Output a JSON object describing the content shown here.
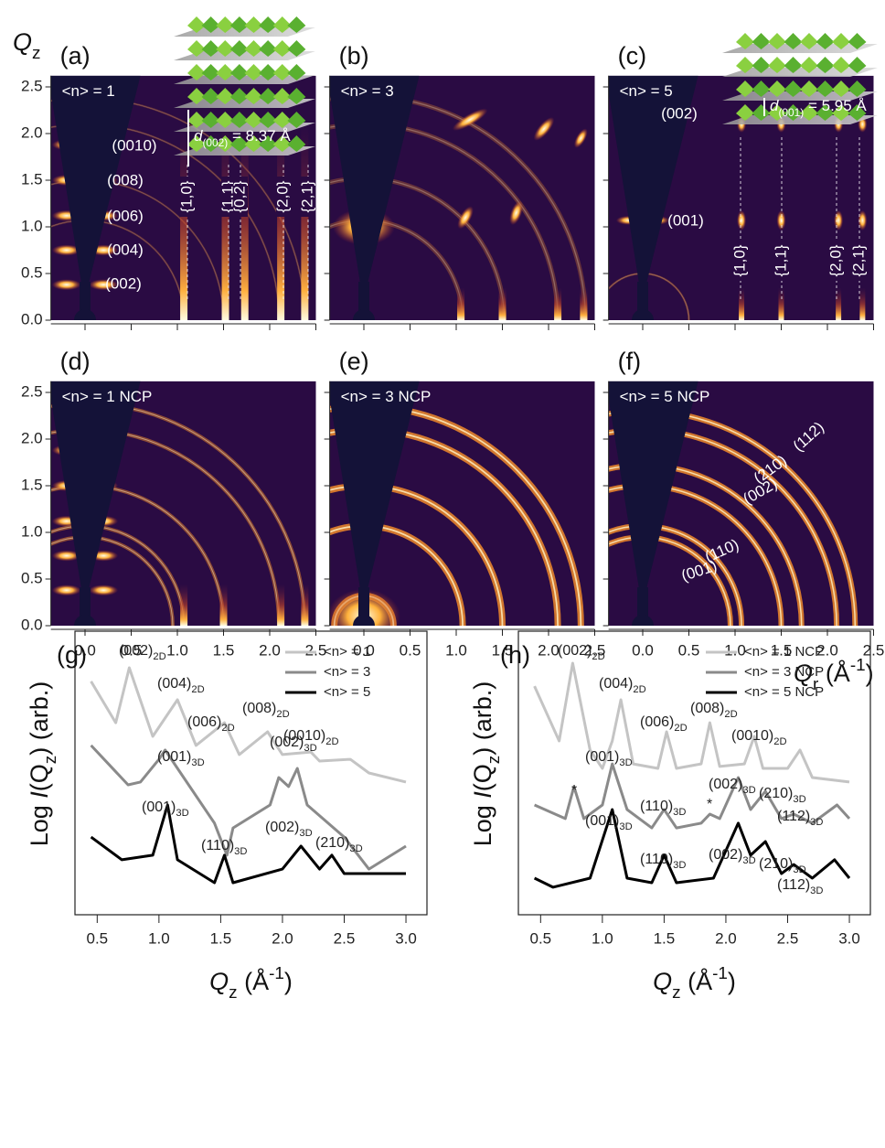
{
  "gi_panels": {
    "qz_label": {
      "main": "Q",
      "sub": "z"
    },
    "qr_label": {
      "main": "Q",
      "sub": "r",
      "unit": " (Å",
      "sup": "-1",
      "close": ")"
    },
    "xlim": [
      -0.37,
      2.5
    ],
    "ylim": [
      0,
      2.62
    ],
    "xticks": [
      {
        "value": 0,
        "label": "0.0"
      },
      0.5,
      {
        "value": 1,
        "label": "1.0"
      },
      1.5,
      {
        "value": 2,
        "label": "2.0"
      },
      2.5
    ],
    "yticks": [
      {
        "value": 0,
        "label": "0.0"
      },
      0.5,
      {
        "value": 1,
        "label": "1.0"
      },
      1.5,
      {
        "value": 2,
        "label": "2.0"
      },
      2.5
    ],
    "panels": [
      {
        "letter": "(a)",
        "label": "<n> = 1",
        "annotations": [
          "(0010)",
          "(008)",
          "(006)",
          "(004)",
          "(002)"
        ],
        "vertical": [
          "{1,0}",
          "{1,1}",
          "{0,2}",
          "{2,0}",
          "{2,1}"
        ],
        "spacing": {
          "d": "d",
          "sub": "(002)",
          "rest": " = 8.37 Å"
        }
      },
      {
        "letter": "(b)",
        "label": "<n> = 3"
      },
      {
        "letter": "(c)",
        "label": "<n> = 5",
        "annotations": [
          "(002)",
          "(001)"
        ],
        "vertical": [
          "{1,0}",
          "{1,1}",
          "{2,0}",
          "{2,1}"
        ],
        "spacing": {
          "d": "d",
          "sub": "(001)",
          "rest": " = 5.95 Å"
        }
      },
      {
        "letter": "(d)",
        "label": "<n> = 1 NCP"
      },
      {
        "letter": "(e)",
        "label": "<n> = 3 NCP"
      },
      {
        "letter": "(f)",
        "label": "<n> = 5 NCP",
        "annotations": [
          "(112)",
          "(210)",
          "(002)",
          "(110)",
          "(001)"
        ]
      }
    ]
  },
  "chart_data": [
    {
      "type": "line",
      "letter": "(g)",
      "xlabel": {
        "main": "Q",
        "sub": "z",
        "unit": " (Å",
        "sup": "-1",
        "close": ")"
      },
      "ylabel": {
        "pre": "Log ",
        "i": "I",
        "open": "(Q",
        "sub": "z",
        "close": ") (arb.)"
      },
      "xlim": [
        0.32,
        3.17
      ],
      "ylim": [
        0,
        10
      ],
      "xticks": [
        0.5,
        {
          "value": 1,
          "label": "1.0"
        },
        1.5,
        {
          "value": 2,
          "label": "2.0"
        },
        2.5,
        {
          "value": 3,
          "label": "3.0"
        }
      ],
      "series": [
        {
          "name": "<n> = 1",
          "color": "#c4c4c4",
          "x": [
            0.45,
            0.65,
            0.76,
            0.95,
            1.15,
            1.3,
            1.53,
            1.65,
            1.88,
            2.0,
            2.23,
            2.3,
            2.55,
            2.7,
            3.0
          ],
          "values": [
            8.23,
            6.77,
            8.71,
            6.29,
            7.58,
            5.97,
            6.77,
            5.65,
            6.45,
            5.65,
            5.74,
            5.42,
            5.48,
            5.0,
            4.68
          ]
        },
        {
          "name": "<n> = 3",
          "color": "#8a8a8a",
          "x": [
            0.45,
            0.75,
            0.85,
            1.0,
            1.05,
            1.2,
            1.45,
            1.55,
            1.6,
            1.9,
            1.97,
            2.05,
            2.12,
            2.2,
            2.5,
            2.7,
            3.0
          ],
          "values": [
            5.97,
            4.58,
            4.68,
            5.48,
            5.81,
            4.84,
            3.23,
            2.1,
            3.06,
            3.87,
            4.84,
            4.52,
            5.16,
            3.87,
            2.74,
            1.61,
            2.42
          ]
        },
        {
          "name": "<n> = 5",
          "color": "#000000",
          "x": [
            0.45,
            0.7,
            0.95,
            1.07,
            1.15,
            1.45,
            1.53,
            1.6,
            2.0,
            2.15,
            2.3,
            2.4,
            2.5,
            3.0
          ],
          "values": [
            2.74,
            1.94,
            2.1,
            3.87,
            1.94,
            1.13,
            2.1,
            1.13,
            1.61,
            2.42,
            1.61,
            2.1,
            1.45,
            1.45
          ]
        }
      ],
      "annotations": [
        {
          "text": "(002)",
          "sub": "2D"
        },
        {
          "text": "(004)",
          "sub": "2D"
        },
        {
          "text": "(006)",
          "sub": "2D"
        },
        {
          "text": "(008)",
          "sub": "2D"
        },
        {
          "text": "(0010)",
          "sub": "2D"
        },
        {
          "text": "(001)",
          "sub": "3D"
        },
        {
          "text": "(002)",
          "sub": "3D"
        },
        {
          "text": "(001)",
          "sub": "3D"
        },
        {
          "text": "(110)",
          "sub": "3D"
        },
        {
          "text": "(002)",
          "sub": "3D"
        },
        {
          "text": "(210)",
          "sub": "3D"
        }
      ]
    },
    {
      "type": "line",
      "letter": "(h)",
      "xlabel": {
        "main": "Q",
        "sub": "z",
        "unit": " (Å",
        "sup": "-1",
        "close": ")"
      },
      "ylabel": {
        "pre": "Log ",
        "i": "I",
        "open": "(Q",
        "sub": "z",
        "close": ") (arb.)"
      },
      "xlim": [
        0.32,
        3.17
      ],
      "ylim": [
        0,
        10
      ],
      "xticks": [
        0.5,
        {
          "value": 1,
          "label": "1.0"
        },
        1.5,
        {
          "value": 2,
          "label": "2.0"
        },
        2.5,
        {
          "value": 3,
          "label": "3.0"
        }
      ],
      "series": [
        {
          "name": "<n> = 1 NCP",
          "color": "#c4c4c4",
          "x": [
            0.45,
            0.65,
            0.76,
            0.9,
            1.0,
            1.08,
            1.15,
            1.25,
            1.45,
            1.52,
            1.6,
            1.8,
            1.87,
            1.95,
            2.15,
            2.23,
            2.3,
            2.5,
            2.6,
            2.7,
            3.0
          ],
          "values": [
            8.06,
            6.13,
            8.87,
            5.81,
            5.16,
            6.13,
            7.58,
            5.32,
            5.16,
            6.45,
            5.16,
            5.32,
            6.77,
            5.23,
            5.32,
            6.29,
            5.16,
            5.16,
            5.81,
            4.84,
            4.68
          ]
        },
        {
          "name": "<n> = 3 NCP",
          "color": "#8a8a8a",
          "x": [
            0.45,
            0.7,
            0.77,
            0.85,
            1.0,
            1.08,
            1.2,
            1.4,
            1.5,
            1.6,
            1.8,
            1.87,
            1.95,
            2.1,
            2.2,
            2.32,
            2.45,
            2.55,
            2.7,
            2.9,
            3.0
          ],
          "values": [
            3.87,
            3.39,
            4.52,
            3.39,
            3.87,
            5.32,
            3.71,
            3.06,
            3.71,
            3.06,
            3.23,
            3.55,
            3.39,
            4.84,
            3.71,
            4.35,
            3.39,
            3.55,
            3.23,
            3.87,
            3.39
          ]
        },
        {
          "name": "<n> = 5 NCP",
          "color": "#000000",
          "x": [
            0.45,
            0.6,
            0.9,
            1.08,
            1.2,
            1.4,
            1.5,
            1.6,
            1.9,
            2.1,
            2.2,
            2.32,
            2.45,
            2.55,
            2.7,
            2.88,
            3.0
          ],
          "values": [
            1.29,
            0.97,
            1.29,
            3.71,
            1.29,
            1.13,
            2.1,
            1.13,
            1.29,
            3.23,
            2.1,
            2.58,
            1.45,
            1.77,
            1.29,
            1.94,
            1.29
          ]
        }
      ],
      "annotations": [
        {
          "text": "(002)",
          "sub": "2D"
        },
        {
          "text": "(004)",
          "sub": "2D"
        },
        {
          "text": "(006)",
          "sub": "2D"
        },
        {
          "text": "(008)",
          "sub": "2D"
        },
        {
          "text": "(0010)",
          "sub": "2D"
        },
        {
          "text": "(001)",
          "sub": "3D"
        },
        {
          "text": "*"
        },
        {
          "text": "(110)",
          "sub": "3D"
        },
        {
          "text": "*"
        },
        {
          "text": "(002)",
          "sub": "3D"
        },
        {
          "text": "(210)",
          "sub": "3D"
        },
        {
          "text": "(112)",
          "sub": "3D"
        },
        {
          "text": "(001)",
          "sub": "3D"
        },
        {
          "text": "(110)",
          "sub": "3D"
        },
        {
          "text": "(002)",
          "sub": "3D"
        },
        {
          "text": "(210)",
          "sub": "3D"
        },
        {
          "text": "(112)",
          "sub": "3D"
        }
      ]
    }
  ]
}
